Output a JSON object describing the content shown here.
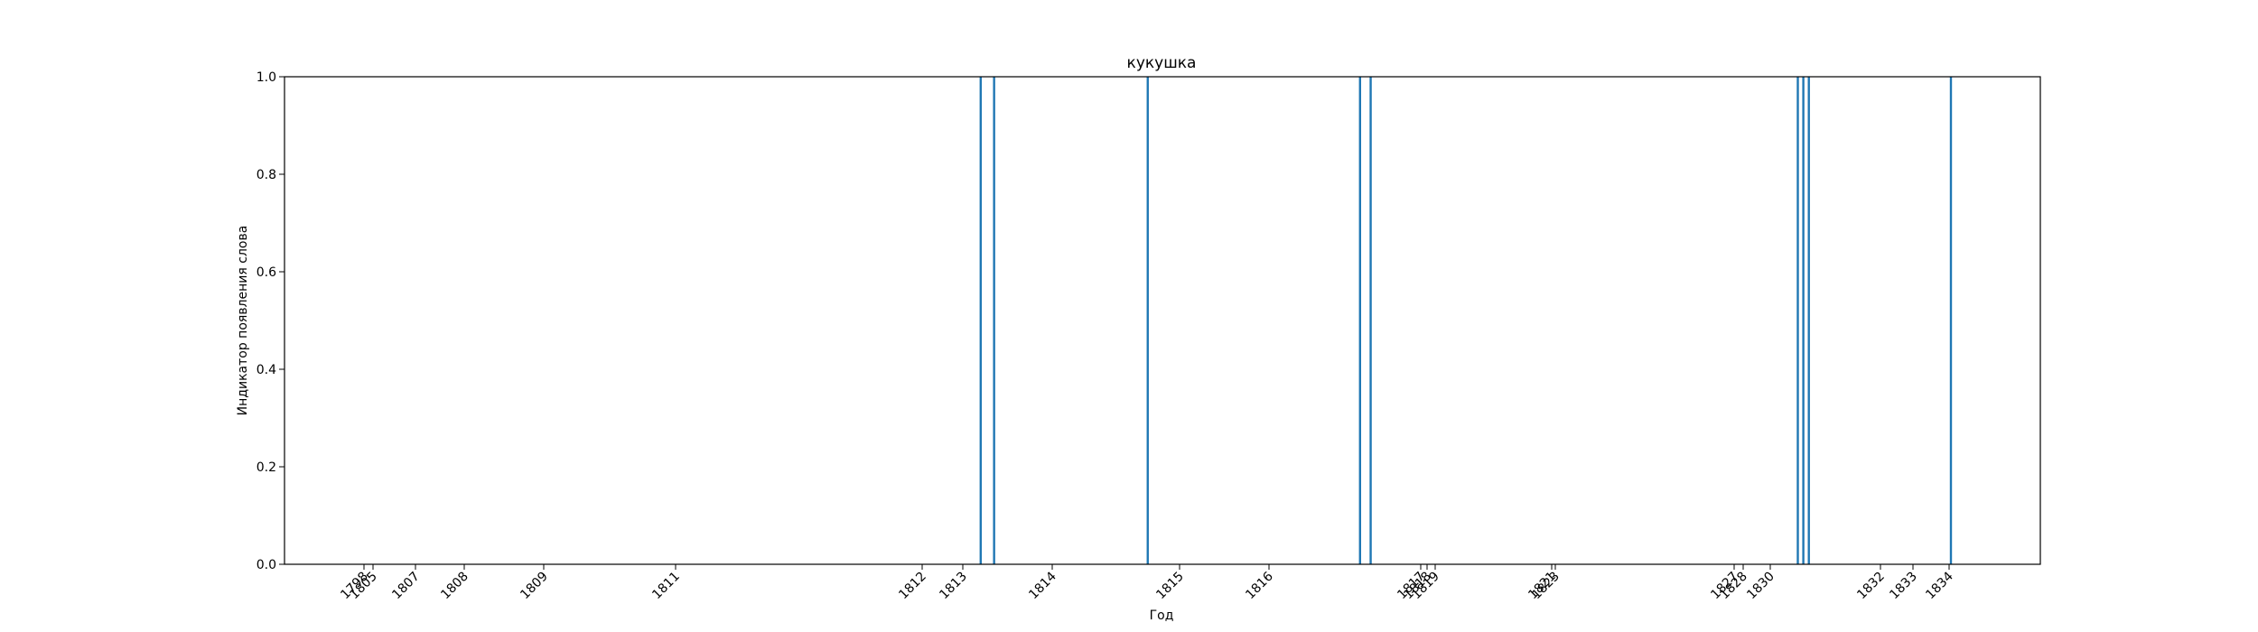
{
  "chart_data": {
    "type": "bar",
    "title": "кукушка",
    "xlabel": "Год",
    "ylabel": "Индикатор появления слова",
    "ylim": [
      0,
      1
    ],
    "y_ticks": [
      "0.0",
      "0.2",
      "0.4",
      "0.6",
      "0.8",
      "1.0"
    ],
    "x_ticks": [
      {
        "label": "1798",
        "x": 1798.0
      },
      {
        "label": "1805",
        "x": 1805.0
      },
      {
        "label": "1807",
        "x": 1807.0
      },
      {
        "label": "1808",
        "x": 1808.0
      },
      {
        "label": "1809",
        "x": 1809.0
      },
      {
        "label": "1811",
        "x": 1811.0
      },
      {
        "label": "1812",
        "x": 1812.0
      },
      {
        "label": "1813",
        "x": 1813.0
      },
      {
        "label": "1814",
        "x": 1814.0
      },
      {
        "label": "1815",
        "x": 1815.0
      },
      {
        "label": "1816",
        "x": 1816.0
      },
      {
        "label": "1817",
        "x": 1817.0
      },
      {
        "label": "1818",
        "x": 1818.0
      },
      {
        "label": "1819",
        "x": 1819.0
      },
      {
        "label": "1821",
        "x": 1821.0
      },
      {
        "label": "1823",
        "x": 1823.0
      },
      {
        "label": "1827",
        "x": 1827.0
      },
      {
        "label": "1828",
        "x": 1828.0
      },
      {
        "label": "1830",
        "x": 1830.0
      },
      {
        "label": "1832",
        "x": 1832.0
      },
      {
        "label": "1833",
        "x": 1833.0
      },
      {
        "label": "1834",
        "x": 1834.0
      }
    ],
    "bars": [
      {
        "x": 1813.2,
        "value": 1
      },
      {
        "x": 1813.35,
        "value": 1
      },
      {
        "x": 1814.75,
        "value": 1
      },
      {
        "x": 1816.6,
        "value": 1
      },
      {
        "x": 1816.67,
        "value": 1
      },
      {
        "x": 1830.5,
        "value": 1
      },
      {
        "x": 1830.6,
        "value": 1
      },
      {
        "x": 1830.7,
        "value": 1
      },
      {
        "x": 1834.05,
        "value": 1
      }
    ],
    "bar_color": "#1f77b4",
    "grid": false,
    "legend": "none"
  }
}
